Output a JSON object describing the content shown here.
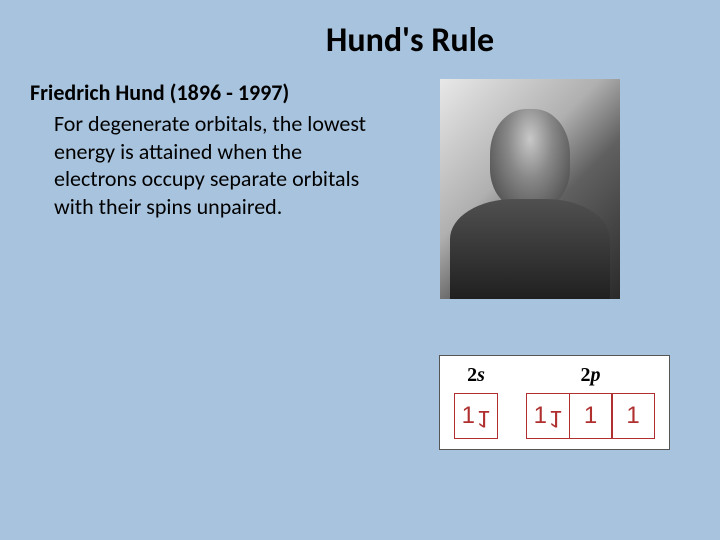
{
  "title": "Hund's Rule",
  "subtitle": "Friedrich Hund (1896 - 1997)",
  "body": "For degenerate orbitals, the lowest energy is attained when the electrons occupy separate orbitals with their spins unpaired.",
  "diagram": {
    "groups": [
      {
        "label_num": "2",
        "label_letter": "s",
        "boxes": [
          [
            "up",
            "down"
          ]
        ]
      },
      {
        "label_num": "2",
        "label_letter": "p",
        "boxes": [
          [
            "up",
            "down"
          ],
          [
            "up"
          ],
          [
            "up"
          ]
        ]
      }
    ],
    "box_border_color": "#b03030",
    "arrow_color": "#b03030",
    "bg_color": "#ffffff"
  },
  "colors": {
    "slide_bg": "#a8c3dd",
    "text": "#000000"
  }
}
